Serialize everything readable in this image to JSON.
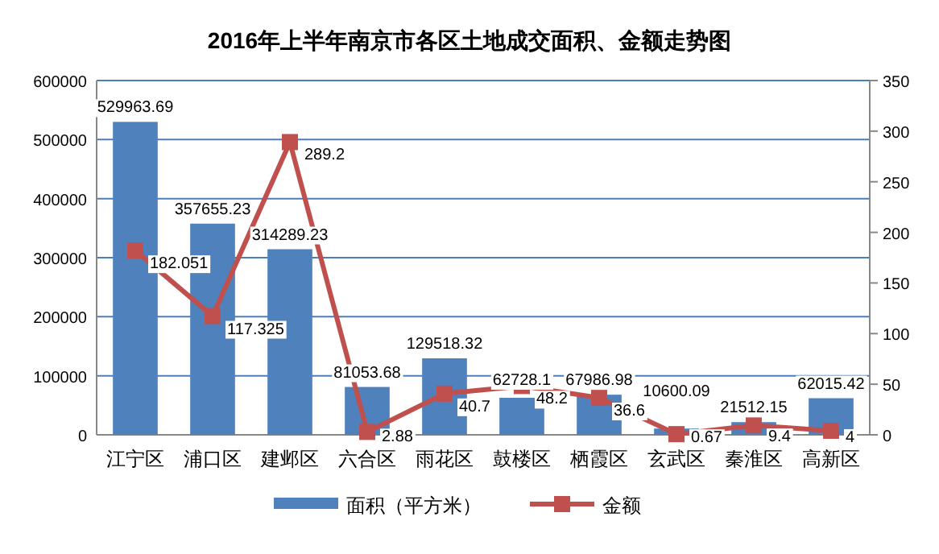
{
  "chart_data": {
    "type": "bar",
    "title": "2016年上半年南京市各区土地成交面积、金额走势图",
    "categories": [
      "江宁区",
      "浦口区",
      "建邺区",
      "六合区",
      "雨花区",
      "鼓楼区",
      "栖霞区",
      "玄武区",
      "秦淮区",
      "高新区"
    ],
    "series": [
      {
        "name": "面积（平方米）",
        "type": "bar",
        "color": "#4f81bd",
        "values": [
          529963.69,
          357655.23,
          314289.23,
          81053.68,
          129518.32,
          62728.1,
          67986.98,
          10600.09,
          21512.15,
          62015.42
        ]
      },
      {
        "name": "金额",
        "type": "line",
        "axis": "y2",
        "color": "#c0504d",
        "marker": "square",
        "values": [
          182.051,
          117.325,
          289.2,
          2.88,
          40.7,
          48.2,
          36.6,
          0.67,
          9.4,
          4
        ]
      }
    ],
    "ylim": [
      0,
      600000
    ],
    "yticks": [
      0,
      100000,
      200000,
      300000,
      400000,
      500000,
      600000
    ],
    "y2lim": [
      0,
      350
    ],
    "y2ticks": [
      0,
      50,
      100,
      150,
      200,
      250,
      300,
      350
    ],
    "grid": "y",
    "legend": "bottom",
    "data_labels": true
  }
}
